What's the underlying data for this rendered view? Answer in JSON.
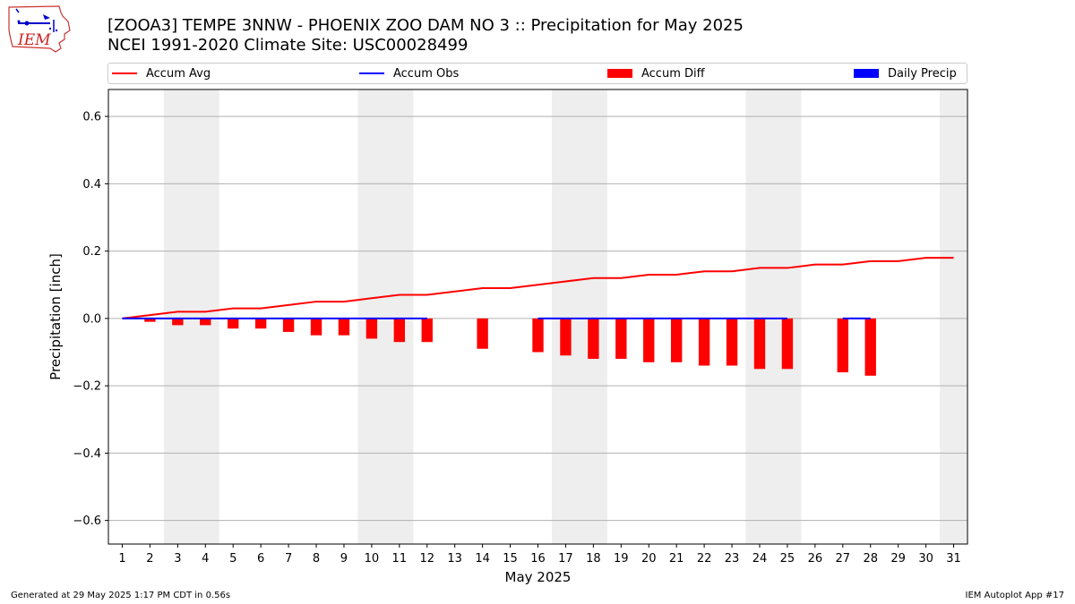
{
  "title": "[ZOOA3] TEMPE 3NNW - PHOENIX ZOO DAM NO 3 :: Precipitation for May 2025",
  "subtitle": "NCEI 1991-2020 Climate Site: USC00028499",
  "logo_text": "IEM",
  "footer_left": "Generated at 29 May 2025 1:17 PM CDT in 0.56s",
  "footer_right": "IEM Autoplot App #17",
  "colors": {
    "accum_avg": "#ff0000",
    "accum_obs": "#0000ff",
    "accum_diff": "#ff0000",
    "daily_precip": "#0000ff",
    "weekend_shade": "#eeeeee",
    "grid": "#b0b0b0"
  },
  "legend": [
    {
      "label": "Accum Avg",
      "kind": "line",
      "color": "#ff0000"
    },
    {
      "label": "Accum Obs",
      "kind": "line",
      "color": "#0000ff"
    },
    {
      "label": "Accum Diff",
      "kind": "bar",
      "color": "#ff0000"
    },
    {
      "label": "Daily Precip",
      "kind": "bar",
      "color": "#0000ff"
    }
  ],
  "chart_data": {
    "type": "line",
    "xlabel": "May 2025",
    "ylabel": "Precipitation [inch]",
    "xlim": [
      0.5,
      31.5
    ],
    "ylim": [
      -0.67,
      0.68
    ],
    "yticks": [
      -0.6,
      -0.4,
      -0.2,
      0.0,
      0.2,
      0.4,
      0.6
    ],
    "ytick_labels": [
      "−0.6",
      "−0.4",
      "−0.2",
      "0.0",
      "0.2",
      "0.4",
      "0.6"
    ],
    "x": [
      1,
      2,
      3,
      4,
      5,
      6,
      7,
      8,
      9,
      10,
      11,
      12,
      13,
      14,
      15,
      16,
      17,
      18,
      19,
      20,
      21,
      22,
      23,
      24,
      25,
      26,
      27,
      28,
      29,
      30,
      31
    ],
    "xtick_labels": [
      "1",
      "2",
      "3",
      "4",
      "5",
      "6",
      "7",
      "8",
      "9",
      "10",
      "11",
      "12",
      "13",
      "14",
      "15",
      "16",
      "17",
      "18",
      "19",
      "20",
      "21",
      "22",
      "23",
      "24",
      "25",
      "26",
      "27",
      "28",
      "29",
      "30",
      "31"
    ],
    "grid": "horizontal",
    "weekend_spans": [
      [
        2.5,
        4.5
      ],
      [
        9.5,
        11.5
      ],
      [
        16.5,
        18.5
      ],
      [
        23.5,
        25.5
      ],
      [
        30.5,
        31.5
      ]
    ],
    "series": [
      {
        "name": "Accum Avg",
        "type": "line",
        "x": [
          1,
          2,
          3,
          4,
          5,
          6,
          7,
          8,
          9,
          10,
          11,
          12,
          13,
          14,
          15,
          16,
          17,
          18,
          19,
          20,
          21,
          22,
          23,
          24,
          25,
          26,
          27,
          28,
          29,
          30,
          31
        ],
        "values": [
          0.0,
          0.01,
          0.02,
          0.02,
          0.03,
          0.03,
          0.04,
          0.05,
          0.05,
          0.06,
          0.07,
          0.07,
          0.08,
          0.09,
          0.09,
          0.1,
          0.11,
          0.12,
          0.12,
          0.13,
          0.13,
          0.14,
          0.14,
          0.15,
          0.15,
          0.16,
          0.16,
          0.17,
          0.17,
          0.18,
          0.18
        ]
      },
      {
        "name": "Accum Obs",
        "type": "line",
        "segments": [
          {
            "x": [
              1,
              2,
              3,
              4,
              5,
              6,
              7,
              8,
              9,
              10,
              11,
              12
            ],
            "values": [
              0,
              0,
              0,
              0,
              0,
              0,
              0,
              0,
              0,
              0,
              0,
              0
            ]
          },
          {
            "x": [
              16,
              17,
              18,
              19,
              20,
              21,
              22,
              23,
              24,
              25
            ],
            "values": [
              0,
              0,
              0,
              0,
              0,
              0,
              0,
              0,
              0,
              0
            ]
          },
          {
            "x": [
              27,
              28
            ],
            "values": [
              0,
              0
            ]
          }
        ]
      },
      {
        "name": "Accum Diff",
        "type": "bar",
        "x": [
          1,
          2,
          3,
          4,
          5,
          6,
          7,
          8,
          9,
          10,
          11,
          12,
          14,
          16,
          17,
          18,
          19,
          20,
          21,
          22,
          23,
          24,
          25,
          27,
          28
        ],
        "values": [
          0.0,
          -0.01,
          -0.02,
          -0.02,
          -0.03,
          -0.03,
          -0.04,
          -0.05,
          -0.05,
          -0.06,
          -0.07,
          -0.07,
          -0.09,
          -0.1,
          -0.11,
          -0.12,
          -0.12,
          -0.13,
          -0.13,
          -0.14,
          -0.14,
          -0.15,
          -0.15,
          -0.16,
          -0.17
        ]
      },
      {
        "name": "Daily Precip",
        "type": "bar",
        "x": [
          1,
          2,
          3,
          4,
          5,
          6,
          7,
          8,
          9,
          10,
          11,
          12,
          16,
          17,
          18,
          19,
          20,
          21,
          22,
          23,
          24,
          25,
          27,
          28
        ],
        "values": [
          0,
          0,
          0,
          0,
          0,
          0,
          0,
          0,
          0,
          0,
          0,
          0,
          0,
          0,
          0,
          0,
          0,
          0,
          0,
          0,
          0,
          0,
          0,
          0
        ]
      }
    ]
  }
}
